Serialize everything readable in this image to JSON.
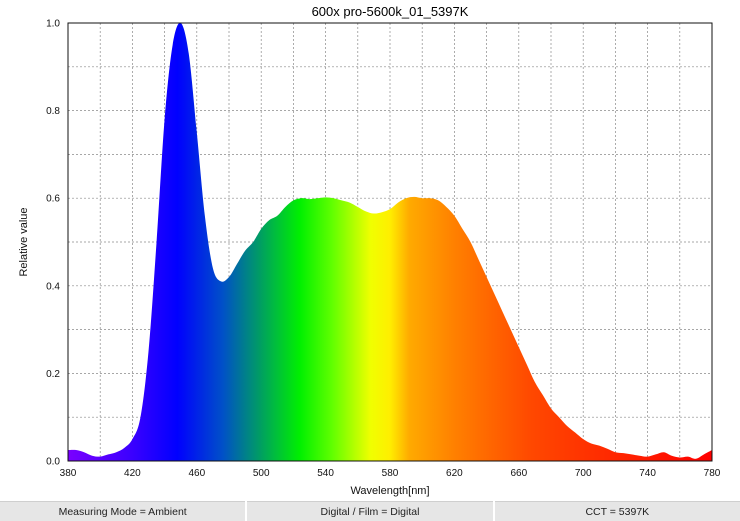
{
  "chart_data": {
    "type": "area",
    "title": "600x pro-5600k_01_5397K",
    "xlabel": "Wavelength[nm]",
    "ylabel": "Relative value",
    "xlim": [
      380,
      780
    ],
    "ylim": [
      0,
      1.0
    ],
    "xticks": [
      380,
      420,
      460,
      500,
      540,
      580,
      620,
      660,
      700,
      740,
      780
    ],
    "xtick_labels": [
      "380",
      "420",
      "460",
      "500",
      "540",
      "580",
      "620",
      "660",
      "700",
      "740",
      "780"
    ],
    "yticks": [
      0,
      0.2,
      0.4,
      0.6,
      0.8,
      1.0
    ],
    "ytick_labels": [
      "0.0",
      "0.2",
      "0.4",
      "0.6",
      "0.8",
      "1.0"
    ],
    "grid": true,
    "fill": "visible-spectrum gradient",
    "series": [
      {
        "x": [
          380,
          385,
          390,
          395,
          400,
          405,
          410,
          415,
          420,
          425,
          430,
          435,
          440,
          445,
          450,
          455,
          460,
          465,
          470,
          475,
          480,
          485,
          490,
          495,
          500,
          505,
          510,
          515,
          520,
          525,
          530,
          535,
          540,
          545,
          550,
          555,
          560,
          565,
          570,
          575,
          580,
          585,
          590,
          595,
          600,
          605,
          610,
          615,
          620,
          625,
          630,
          635,
          640,
          645,
          650,
          655,
          660,
          665,
          670,
          675,
          680,
          685,
          690,
          695,
          700,
          705,
          710,
          715,
          720,
          725,
          730,
          735,
          740,
          745,
          750,
          755,
          760,
          765,
          770,
          775,
          780
        ],
        "values": [
          0.025,
          0.025,
          0.02,
          0.012,
          0.01,
          0.015,
          0.02,
          0.03,
          0.05,
          0.1,
          0.25,
          0.5,
          0.78,
          0.95,
          1.0,
          0.93,
          0.75,
          0.56,
          0.44,
          0.41,
          0.42,
          0.45,
          0.48,
          0.5,
          0.53,
          0.55,
          0.56,
          0.58,
          0.595,
          0.6,
          0.598,
          0.6,
          0.602,
          0.6,
          0.595,
          0.59,
          0.58,
          0.57,
          0.565,
          0.568,
          0.575,
          0.59,
          0.6,
          0.603,
          0.6,
          0.6,
          0.595,
          0.58,
          0.56,
          0.53,
          0.5,
          0.46,
          0.42,
          0.38,
          0.34,
          0.3,
          0.26,
          0.22,
          0.18,
          0.15,
          0.12,
          0.1,
          0.08,
          0.065,
          0.05,
          0.04,
          0.035,
          0.028,
          0.02,
          0.018,
          0.015,
          0.012,
          0.01,
          0.015,
          0.02,
          0.012,
          0.008,
          0.01,
          0.005,
          0.015,
          0.025
        ]
      }
    ]
  },
  "status_bar": {
    "measuring_mode": "Measuring Mode = Ambient",
    "digital_film": "Digital / Film = Digital",
    "cct": "CCT = 5397K"
  }
}
